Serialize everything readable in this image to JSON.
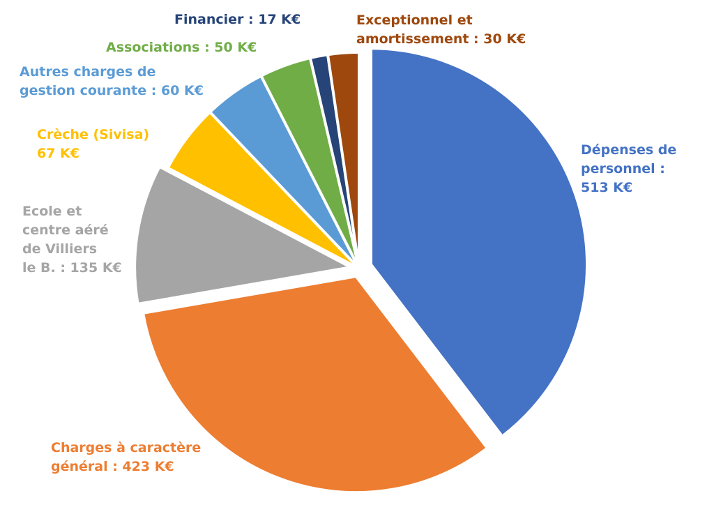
{
  "chart_data": {
    "type": "pie",
    "unit": "K€",
    "slices": [
      {
        "name": "Dépenses de personnel",
        "value": 513,
        "color": "#4472C4",
        "label_lines": [
          "Dépenses de",
          "personnel :",
          "513 K€"
        ]
      },
      {
        "name": "Charges à caractère général",
        "value": 423,
        "color": "#ED7D31",
        "label_lines": [
          "Charges à caractère",
          "général : 423 K€"
        ]
      },
      {
        "name": "Ecole et centre aéré de Villiers le B.",
        "value": 135,
        "color": "#A5A5A5",
        "label_lines": [
          "Ecole et",
          "centre aéré",
          "de Villiers",
          "le B. : 135 K€"
        ]
      },
      {
        "name": "Crèche (Sivisa)",
        "value": 67,
        "color": "#FFC000",
        "label_lines": [
          "Crèche (Sivisa)",
          "67 K€"
        ]
      },
      {
        "name": "Autres charges de gestion courante",
        "value": 60,
        "color": "#5B9BD5",
        "label_lines": [
          "Autres charges de",
          "gestion courante : 60 K€"
        ]
      },
      {
        "name": "Associations",
        "value": 50,
        "color": "#70AD47",
        "label_lines": [
          "Associations : 50 K€"
        ]
      },
      {
        "name": "Financier",
        "value": 17,
        "color": "#264478",
        "label_lines": [
          "Financier : 17 K€"
        ]
      },
      {
        "name": "Exceptionnel et amortissement",
        "value": 30,
        "color": "#9E480E",
        "label_lines": [
          "Exceptionnel et",
          "amortissement : 30 K€"
        ]
      }
    ]
  }
}
